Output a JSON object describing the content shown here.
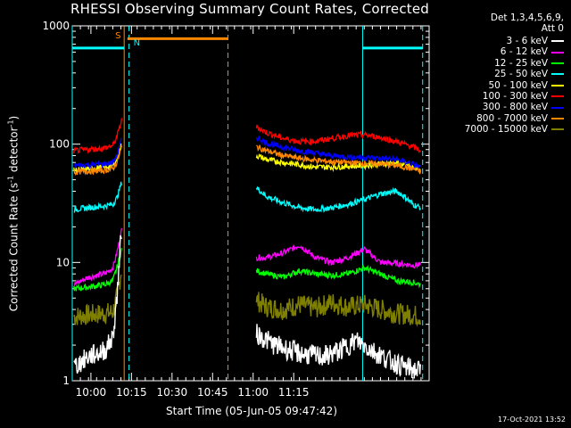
{
  "chart_data": {
    "type": "line",
    "title": "RHESSI Observing Summary Count Rates, Corrected",
    "xlabel": "Start Time (05-Jun-05 09:47:42)",
    "ylabel": "Corrected Count Rate (s",
    "ylabel_sup": "-1",
    "ylabel_tail": " detector",
    "ylabel_end": ")",
    "yscale": "log",
    "ylim": [
      1,
      1000
    ],
    "xlim_minutes": [
      0,
      44
    ],
    "x_ticks": [
      {
        "minute": 2.3,
        "label": "10:00"
      },
      {
        "minute": 7.3,
        "label": "10:15"
      },
      {
        "minute": 12.3,
        "label": "10:30"
      },
      {
        "minute": 17.3,
        "label": "10:45"
      },
      {
        "minute": 22.3,
        "label": "11:00"
      },
      {
        "minute": 27.3,
        "label": "11:15"
      }
    ],
    "y_ticks": [
      {
        "value": 1,
        "label": "1"
      },
      {
        "value": 10,
        "label": "10"
      },
      {
        "value": 100,
        "label": "100"
      },
      {
        "value": 1000,
        "label": "1000"
      }
    ],
    "legend_header": [
      "Det 1,3,4,5,6,9,",
      "Att 0"
    ],
    "series": [
      {
        "name": "3 - 6 keV",
        "color": "#ffffff",
        "segments": [
          {
            "x": [
              0.2,
              2,
              4,
              5,
              5.5,
              6.1
            ],
            "y": [
              1.3,
              1.6,
              1.8,
              2.3,
              5,
              20
            ]
          },
          {
            "x": [
              22.7,
              25,
              28,
              31,
              33,
              35,
              37,
              39,
              41,
              43
            ],
            "y": [
              2.5,
              2.0,
              1.7,
              1.6,
              1.8,
              2.2,
              1.8,
              1.5,
              1.3,
              1.2
            ]
          }
        ]
      },
      {
        "name": "6 - 12 keV",
        "color": "#ff00ff",
        "segments": [
          {
            "x": [
              0.2,
              2,
              4,
              5,
              5.5,
              6.1
            ],
            "y": [
              6.5,
              7.5,
              8,
              9,
              12,
              19
            ]
          },
          {
            "x": [
              22.7,
              24,
              26,
              28,
              30,
              32,
              34,
              36,
              38,
              40,
              42,
              43
            ],
            "y": [
              11,
              11,
              12,
              14,
              11,
              10,
              11,
              13,
              10,
              9.8,
              9.5,
              9.5
            ]
          }
        ]
      },
      {
        "name": "12 - 25 keV",
        "color": "#00ff00",
        "segments": [
          {
            "x": [
              0.2,
              2,
              4,
              5,
              5.5,
              6.1
            ],
            "y": [
              6.0,
              6.2,
              6.5,
              7,
              9,
              13
            ]
          },
          {
            "x": [
              22.7,
              24,
              26,
              28,
              30,
              32,
              34,
              36,
              38,
              40,
              42,
              43
            ],
            "y": [
              8.5,
              8.0,
              7.5,
              8.5,
              8.0,
              7.8,
              8.0,
              9,
              8,
              7,
              6.8,
              6.5
            ]
          }
        ]
      },
      {
        "name": "25 - 50 keV",
        "color": "#00ffff",
        "segments": [
          {
            "x": [
              0.2,
              2,
              4,
              5,
              5.5,
              6.1
            ],
            "y": [
              28,
              29,
              30,
              31,
              35,
              48
            ]
          },
          {
            "x": [
              22.7,
              24,
              26,
              28,
              30,
              32,
              34,
              36,
              38,
              40,
              41,
              42,
              43
            ],
            "y": [
              43,
              36,
              32,
              29,
              28,
              29,
              31,
              34,
              38,
              40,
              36,
              31,
              29
            ]
          }
        ]
      },
      {
        "name": "50 - 100 keV",
        "color": "#ffff00",
        "segments": [
          {
            "x": [
              0.2,
              2,
              4,
              5,
              5.5,
              6.1
            ],
            "y": [
              60,
              62,
              64,
              66,
              74,
              100
            ]
          },
          {
            "x": [
              22.7,
              24,
              26,
              28,
              30,
              32,
              34,
              36,
              38,
              40,
              42,
              43
            ],
            "y": [
              80,
              74,
              70,
              67,
              64,
              64,
              65,
              66,
              68,
              70,
              64,
              60
            ]
          }
        ]
      },
      {
        "name": "100 - 300 keV",
        "color": "#ff0000",
        "segments": [
          {
            "x": [
              0.2,
              2,
              4,
              5,
              5.5,
              6.1
            ],
            "y": [
              88,
              90,
              93,
              97,
              115,
              160
            ]
          },
          {
            "x": [
              22.7,
              24,
              26,
              28,
              30,
              32,
              34,
              36,
              38,
              40,
              42,
              43
            ],
            "y": [
              140,
              125,
              112,
              105,
              106,
              112,
              118,
              120,
              114,
              105,
              95,
              88
            ]
          }
        ]
      },
      {
        "name": "300 - 800 keV",
        "color": "#0000ff",
        "segments": [
          {
            "x": [
              0.2,
              2,
              4,
              5,
              5.5,
              6.1
            ],
            "y": [
              66,
              67,
              68,
              70,
              80,
              110
            ]
          },
          {
            "x": [
              22.7,
              24,
              26,
              28,
              30,
              32,
              34,
              36,
              38,
              40,
              42,
              43
            ],
            "y": [
              115,
              102,
              94,
              88,
              84,
              80,
              78,
              77,
              76,
              74,
              68,
              63
            ]
          }
        ]
      },
      {
        "name": "800 - 7000 keV",
        "color": "#ff8800",
        "segments": [
          {
            "x": [
              0.2,
              2,
              4,
              5,
              5.5,
              6.1
            ],
            "y": [
              58,
              59,
              60,
              62,
              70,
              95
            ]
          },
          {
            "x": [
              22.7,
              24,
              26,
              28,
              30,
              32,
              34,
              36,
              38,
              40,
              42,
              43
            ],
            "y": [
              95,
              88,
              80,
              76,
              73,
              71,
              70,
              69,
              68,
              66,
              62,
              58
            ]
          }
        ]
      },
      {
        "name": "7000 - 15000 keV",
        "color": "#808000",
        "segments": [
          {
            "x": [
              0.2,
              2,
              4,
              5,
              5.5,
              6.1
            ],
            "y": [
              3.5,
              3.6,
              3.7,
              3.8,
              5,
              9
            ]
          },
          {
            "x": [
              22.7,
              24,
              26,
              28,
              30,
              32,
              34,
              36,
              38,
              40,
              42,
              43
            ],
            "y": [
              4.8,
              4.2,
              4.0,
              4.4,
              4.1,
              4.6,
              4.2,
              4.4,
              4.0,
              3.7,
              3.6,
              3.5
            ]
          }
        ]
      }
    ],
    "annotations": {
      "flag_labels": [
        {
          "text": "S",
          "color": "#ff8800"
        },
        {
          "text": "N",
          "color": "#00ffff"
        }
      ],
      "orange_lines_minute": [
        6.4,
        19.2
      ],
      "orange_dashed_minute": 19.2,
      "cyan_lines_minute": [
        0.0,
        7.0,
        35.8,
        43.2
      ],
      "saa_flag_minutes": [
        6.8,
        19.2
      ],
      "night_flag_minutes": [
        [
          0.0,
          6.4
        ],
        [
          35.8,
          43.2
        ]
      ],
      "flag_level": 650,
      "saa_level": 780
    }
  },
  "footer": {
    "timestamp": "17-Oct-2021 13:52"
  }
}
